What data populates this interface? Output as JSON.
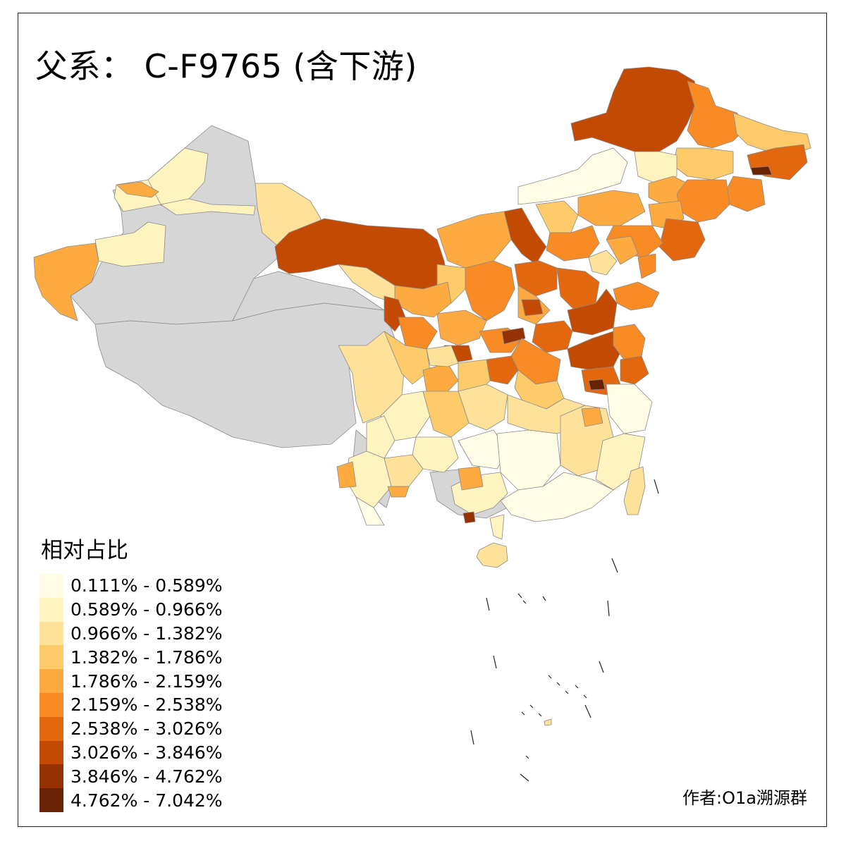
{
  "title": "父系： C-F9765 (含下游)",
  "author": "作者:O1a溯源群",
  "legend": {
    "title": "相对占比",
    "items": [
      {
        "label": "0.111% - 0.589%",
        "color": "#fffde6"
      },
      {
        "label": "0.589% - 0.966%",
        "color": "#fff3c0"
      },
      {
        "label": "0.966% - 1.382%",
        "color": "#fee29a"
      },
      {
        "label": "1.382% - 1.786%",
        "color": "#fecb6a"
      },
      {
        "label": "1.786% - 2.159%",
        "color": "#fdab40"
      },
      {
        "label": "2.159% - 2.538%",
        "color": "#f88b23"
      },
      {
        "label": "2.538% - 3.026%",
        "color": "#e3670f"
      },
      {
        "label": "3.026% - 3.846%",
        "color": "#c34a02"
      },
      {
        "label": "3.846% - 4.762%",
        "color": "#963104"
      },
      {
        "label": "4.762% - 7.042%",
        "color": "#6a2205"
      }
    ]
  },
  "colors": {
    "no_data": "#d6d6d6",
    "border": "#8a8a8a",
    "frame": "#222222"
  }
}
